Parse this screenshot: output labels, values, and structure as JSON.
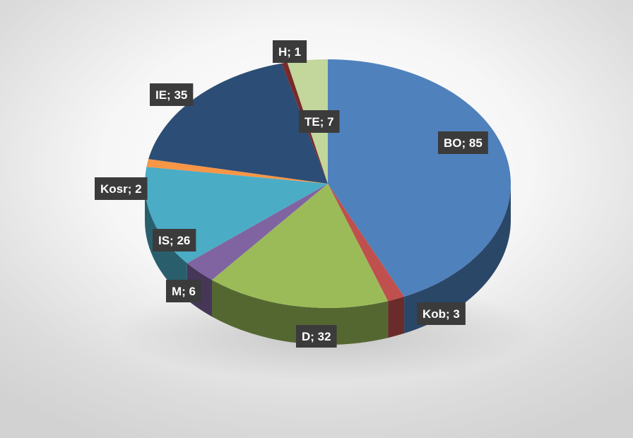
{
  "chart_data": {
    "type": "pie",
    "three_d": true,
    "labels_format": "category; value",
    "slices": [
      {
        "label": "BO",
        "value": 85,
        "color": "#4f81bd"
      },
      {
        "label": "Kob",
        "value": 3,
        "color": "#c0504d"
      },
      {
        "label": "D",
        "value": 32,
        "color": "#9bbb59"
      },
      {
        "label": "M",
        "value": 6,
        "color": "#8064a2"
      },
      {
        "label": "IS",
        "value": 26,
        "color": "#4bacc6"
      },
      {
        "label": "Kosr",
        "value": 2,
        "color": "#f79646"
      },
      {
        "label": "IE",
        "value": 35,
        "color": "#2c4d75"
      },
      {
        "label": "H",
        "value": 1,
        "color": "#772c2a"
      },
      {
        "label": "TE",
        "value": 7,
        "color": "#c3d69b"
      }
    ]
  }
}
